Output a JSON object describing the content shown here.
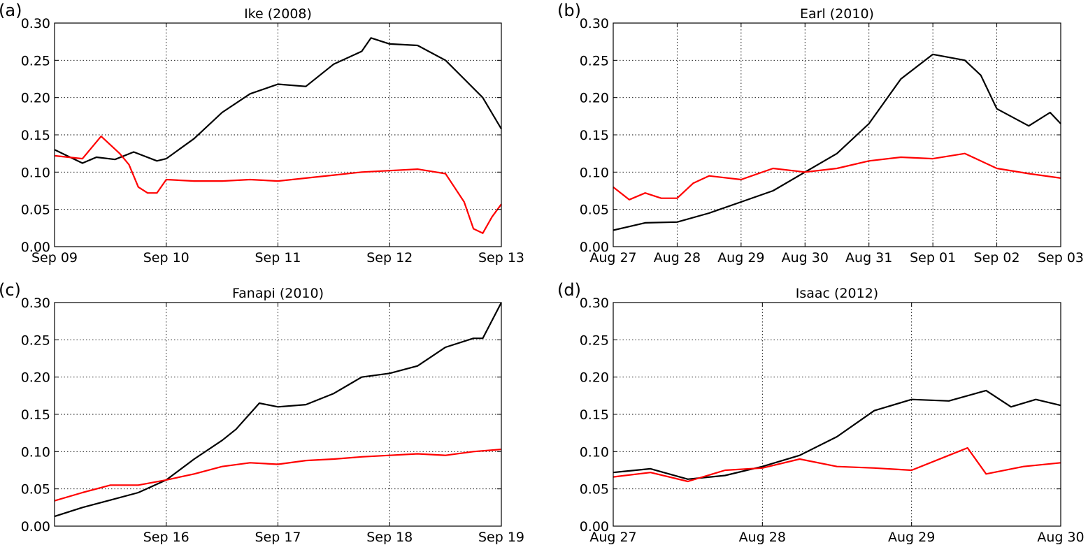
{
  "figure": {
    "colors": {
      "series1": "#000000",
      "series2": "#ff0000",
      "grid": "#000000"
    }
  },
  "chart_data": [
    {
      "type": "line",
      "panel_label": "(a)",
      "title": "Ike (2008)",
      "x_unit": "date",
      "xlim": [
        "2008-09-09",
        "2008-09-13"
      ],
      "ylim": [
        0,
        0.3
      ],
      "y_ticks": [
        0.0,
        0.05,
        0.1,
        0.15,
        0.2,
        0.25,
        0.3
      ],
      "x_ticks": [
        "2008-09-09",
        "2008-09-10",
        "2008-09-11",
        "2008-09-12",
        "2008-09-13"
      ],
      "x_tick_labels": [
        "Sep 09",
        "Sep 10",
        "Sep 11",
        "Sep 12",
        "Sep 13"
      ],
      "grid": true,
      "series": [
        {
          "color": "#000000",
          "x": [
            "2008-09-09 00:00",
            "2008-09-09 06:00",
            "2008-09-09 09:00",
            "2008-09-09 13:00",
            "2008-09-09 17:00",
            "2008-09-09 22:00",
            "2008-09-10 00:00",
            "2008-09-10 06:00",
            "2008-09-10 12:00",
            "2008-09-10 18:00",
            "2008-09-11 00:00",
            "2008-09-11 06:00",
            "2008-09-11 12:00",
            "2008-09-11 18:00",
            "2008-09-11 20:00",
            "2008-09-12 00:00",
            "2008-09-12 06:00",
            "2008-09-12 12:00",
            "2008-09-12 16:00",
            "2008-09-12 20:00",
            "2008-09-13 00:00"
          ],
          "y": [
            0.13,
            0.112,
            0.12,
            0.117,
            0.127,
            0.115,
            0.118,
            0.145,
            0.18,
            0.205,
            0.218,
            0.215,
            0.245,
            0.262,
            0.28,
            0.272,
            0.27,
            0.25,
            0.225,
            0.2,
            0.158
          ]
        },
        {
          "color": "#ff0000",
          "x": [
            "2008-09-09 00:00",
            "2008-09-09 06:00",
            "2008-09-09 10:00",
            "2008-09-09 14:00",
            "2008-09-09 16:00",
            "2008-09-09 18:00",
            "2008-09-09 20:00",
            "2008-09-09 22:00",
            "2008-09-10 00:00",
            "2008-09-10 06:00",
            "2008-09-10 12:00",
            "2008-09-10 18:00",
            "2008-09-11 00:00",
            "2008-09-11 06:00",
            "2008-09-11 12:00",
            "2008-09-11 18:00",
            "2008-09-12 00:00",
            "2008-09-12 06:00",
            "2008-09-12 12:00",
            "2008-09-12 16:00",
            "2008-09-12 18:00",
            "2008-09-12 20:00",
            "2008-09-12 22:00",
            "2008-09-13 00:00"
          ],
          "y": [
            0.122,
            0.118,
            0.148,
            0.125,
            0.11,
            0.08,
            0.072,
            0.072,
            0.09,
            0.088,
            0.088,
            0.09,
            0.088,
            0.092,
            0.096,
            0.1,
            0.102,
            0.104,
            0.098,
            0.06,
            0.024,
            0.018,
            0.04,
            0.057
          ]
        }
      ]
    },
    {
      "type": "line",
      "panel_label": "(b)",
      "title": "Earl (2010)",
      "x_unit": "date",
      "xlim": [
        "2010-08-27",
        "2010-09-03"
      ],
      "ylim": [
        0,
        0.3
      ],
      "y_ticks": [
        0.0,
        0.05,
        0.1,
        0.15,
        0.2,
        0.25,
        0.3
      ],
      "x_ticks": [
        "2010-08-27",
        "2010-08-28",
        "2010-08-29",
        "2010-08-30",
        "2010-08-31",
        "2010-09-01",
        "2010-09-02",
        "2010-09-03"
      ],
      "x_tick_labels": [
        "Aug 27",
        "Aug 28",
        "Aug 29",
        "Aug 30",
        "Aug 31",
        "Sep 01",
        "Sep 02",
        "Sep 03"
      ],
      "grid": true,
      "series": [
        {
          "color": "#000000",
          "x": [
            "2010-08-27 00:00",
            "2010-08-27 12:00",
            "2010-08-28 00:00",
            "2010-08-28 12:00",
            "2010-08-29 00:00",
            "2010-08-29 12:00",
            "2010-08-30 00:00",
            "2010-08-30 12:00",
            "2010-08-31 00:00",
            "2010-08-31 12:00",
            "2010-09-01 00:00",
            "2010-09-01 12:00",
            "2010-09-01 18:00",
            "2010-09-02 00:00",
            "2010-09-02 12:00",
            "2010-09-02 20:00",
            "2010-09-03 00:00"
          ],
          "y": [
            0.022,
            0.032,
            0.033,
            0.045,
            0.06,
            0.075,
            0.1,
            0.125,
            0.165,
            0.225,
            0.258,
            0.25,
            0.23,
            0.185,
            0.162,
            0.18,
            0.165
          ]
        },
        {
          "color": "#ff0000",
          "x": [
            "2010-08-27 00:00",
            "2010-08-27 06:00",
            "2010-08-27 12:00",
            "2010-08-27 18:00",
            "2010-08-28 00:00",
            "2010-08-28 06:00",
            "2010-08-28 12:00",
            "2010-08-29 00:00",
            "2010-08-29 12:00",
            "2010-08-30 00:00",
            "2010-08-30 12:00",
            "2010-08-31 00:00",
            "2010-08-31 12:00",
            "2010-09-01 00:00",
            "2010-09-01 12:00",
            "2010-09-02 00:00",
            "2010-09-02 12:00",
            "2010-09-03 00:00"
          ],
          "y": [
            0.08,
            0.063,
            0.072,
            0.065,
            0.065,
            0.085,
            0.095,
            0.09,
            0.105,
            0.1,
            0.105,
            0.115,
            0.12,
            0.118,
            0.125,
            0.105,
            0.098,
            0.092
          ]
        }
      ]
    },
    {
      "type": "line",
      "panel_label": "(c)",
      "title": "Fanapi (2010)",
      "x_unit": "date",
      "xlim": [
        "2010-09-15 00:00",
        "2010-09-19 00:00"
      ],
      "ylim": [
        0,
        0.3
      ],
      "y_ticks": [
        0.0,
        0.05,
        0.1,
        0.15,
        0.2,
        0.25,
        0.3
      ],
      "x_ticks": [
        "2010-09-16",
        "2010-09-17",
        "2010-09-18",
        "2010-09-19"
      ],
      "x_tick_labels": [
        "Sep 16",
        "Sep 17",
        "Sep 18",
        "Sep 19"
      ],
      "grid": true,
      "series": [
        {
          "color": "#000000",
          "x": [
            "2010-09-15 00:00",
            "2010-09-15 06:00",
            "2010-09-15 12:00",
            "2010-09-15 18:00",
            "2010-09-16 00:00",
            "2010-09-16 06:00",
            "2010-09-16 12:00",
            "2010-09-16 15:00",
            "2010-09-16 20:00",
            "2010-09-17 00:00",
            "2010-09-17 06:00",
            "2010-09-17 12:00",
            "2010-09-17 18:00",
            "2010-09-18 00:00",
            "2010-09-18 06:00",
            "2010-09-18 12:00",
            "2010-09-18 18:00",
            "2010-09-18 20:00",
            "2010-09-19 00:00"
          ],
          "y": [
            0.013,
            0.025,
            0.035,
            0.045,
            0.062,
            0.09,
            0.115,
            0.13,
            0.165,
            0.16,
            0.163,
            0.178,
            0.2,
            0.205,
            0.215,
            0.24,
            0.252,
            0.252,
            0.3
          ]
        },
        {
          "color": "#ff0000",
          "x": [
            "2010-09-15 00:00",
            "2010-09-15 06:00",
            "2010-09-15 12:00",
            "2010-09-15 18:00",
            "2010-09-16 00:00",
            "2010-09-16 06:00",
            "2010-09-16 12:00",
            "2010-09-16 18:00",
            "2010-09-17 00:00",
            "2010-09-17 06:00",
            "2010-09-17 12:00",
            "2010-09-17 18:00",
            "2010-09-18 00:00",
            "2010-09-18 06:00",
            "2010-09-18 12:00",
            "2010-09-18 18:00",
            "2010-09-19 00:00"
          ],
          "y": [
            0.034,
            0.045,
            0.055,
            0.055,
            0.062,
            0.07,
            0.08,
            0.085,
            0.083,
            0.088,
            0.09,
            0.093,
            0.095,
            0.097,
            0.095,
            0.1,
            0.103
          ]
        }
      ]
    },
    {
      "type": "line",
      "panel_label": "(d)",
      "title": "Isaac (2012)",
      "x_unit": "date",
      "xlim": [
        "2012-08-27",
        "2012-08-30"
      ],
      "ylim": [
        0,
        0.3
      ],
      "y_ticks": [
        0.0,
        0.05,
        0.1,
        0.15,
        0.2,
        0.25,
        0.3
      ],
      "x_ticks": [
        "2012-08-27",
        "2012-08-28",
        "2012-08-29",
        "2012-08-30"
      ],
      "x_tick_labels": [
        "Aug 27",
        "Aug 28",
        "Aug 29",
        "Aug 30"
      ],
      "grid": true,
      "series": [
        {
          "color": "#000000",
          "x": [
            "2012-08-27 00:00",
            "2012-08-27 06:00",
            "2012-08-27 12:00",
            "2012-08-27 18:00",
            "2012-08-28 00:00",
            "2012-08-28 06:00",
            "2012-08-28 12:00",
            "2012-08-28 18:00",
            "2012-08-29 00:00",
            "2012-08-29 06:00",
            "2012-08-29 12:00",
            "2012-08-29 16:00",
            "2012-08-29 20:00",
            "2012-08-30 00:00"
          ],
          "y": [
            0.072,
            0.077,
            0.063,
            0.068,
            0.08,
            0.095,
            0.12,
            0.155,
            0.17,
            0.168,
            0.182,
            0.16,
            0.17,
            0.162
          ]
        },
        {
          "color": "#ff0000",
          "x": [
            "2012-08-27 00:00",
            "2012-08-27 06:00",
            "2012-08-27 12:00",
            "2012-08-27 18:00",
            "2012-08-28 00:00",
            "2012-08-28 06:00",
            "2012-08-28 12:00",
            "2012-08-28 18:00",
            "2012-08-29 00:00",
            "2012-08-29 06:00",
            "2012-08-29 09:00",
            "2012-08-29 12:00",
            "2012-08-29 18:00",
            "2012-08-30 00:00"
          ],
          "y": [
            0.066,
            0.072,
            0.06,
            0.075,
            0.078,
            0.09,
            0.08,
            0.078,
            0.075,
            0.095,
            0.105,
            0.07,
            0.08,
            0.085
          ]
        }
      ]
    }
  ]
}
